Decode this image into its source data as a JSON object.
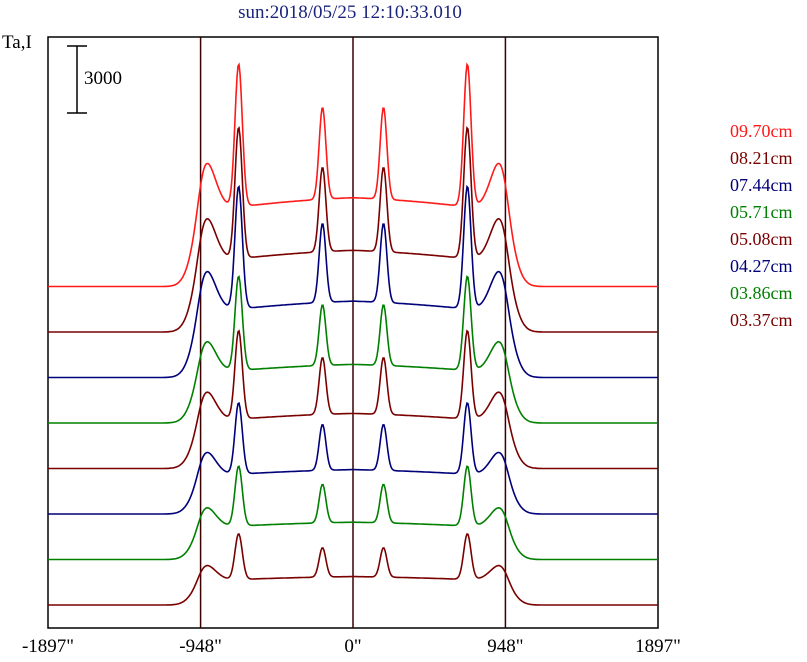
{
  "chart_data": {
    "type": "line",
    "title": "sun:2018/05/25 12:10:33.010",
    "ylabel": "Ta,I",
    "scale_bar_label": "3000",
    "scale_bar_value": 3000,
    "x_ticks": [
      "-1897\"",
      "-948\"",
      "0\"",
      "948\"",
      "1897\""
    ],
    "x_tick_values": [
      -1897,
      -948,
      0,
      948,
      1897
    ],
    "xlim": [
      -1897,
      1897
    ],
    "limb_lines_x": [
      -948,
      0,
      948
    ],
    "series": [
      {
        "name": "09.70cm",
        "color": "#ff1a1a",
        "baseline_index": 7,
        "peak_scale": 1.0
      },
      {
        "name": "08.21cm",
        "color": "#7a0000",
        "baseline_index": 6,
        "peak_scale": 0.92
      },
      {
        "name": "07.44cm",
        "color": "#00007a",
        "baseline_index": 5,
        "peak_scale": 0.86
      },
      {
        "name": "05.71cm",
        "color": "#008000",
        "baseline_index": 4,
        "peak_scale": 0.66
      },
      {
        "name": "05.08cm",
        "color": "#7a0000",
        "baseline_index": 3,
        "peak_scale": 0.62
      },
      {
        "name": "04.27cm",
        "color": "#00007a",
        "baseline_index": 2,
        "peak_scale": 0.5
      },
      {
        "name": "03.86cm",
        "color": "#008000",
        "baseline_index": 1,
        "peak_scale": 0.42
      },
      {
        "name": "03.37cm",
        "color": "#7a0000",
        "baseline_index": 0,
        "peak_scale": 0.32
      }
    ]
  }
}
